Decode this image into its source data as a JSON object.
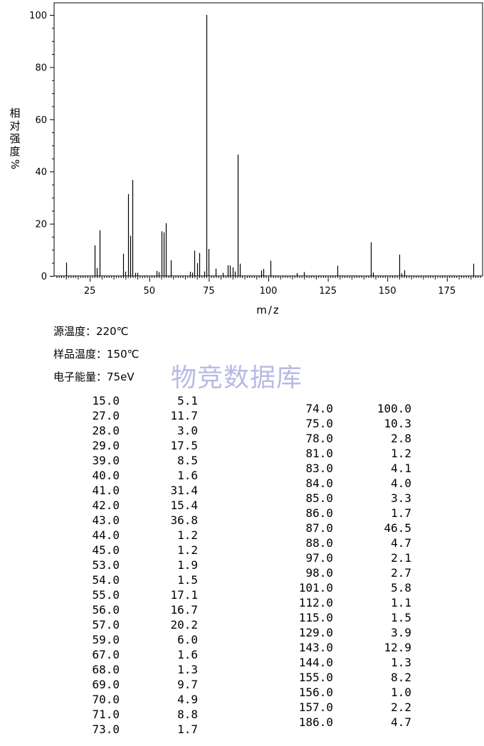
{
  "chart_data": {
    "type": "bar",
    "xlabel": "m/z",
    "ylabel": "相对强度%",
    "ylabel_chars": [
      "相",
      "对",
      "强",
      "度"
    ],
    "ylabel_unit": "%",
    "xlim": [
      10,
      190
    ],
    "ylim": [
      0,
      100
    ],
    "xticks": [
      25,
      50,
      75,
      100,
      125,
      150,
      175
    ],
    "yticks": [
      0,
      20,
      40,
      60,
      80,
      100
    ],
    "xtick_labels": [
      "25",
      "50",
      "75",
      "100",
      "125",
      "150",
      "175"
    ],
    "ytick_labels": [
      "0",
      "20",
      "40",
      "60",
      "80",
      "100"
    ],
    "grid": false,
    "peaks": [
      {
        "mz": 15,
        "intensity": 5.1
      },
      {
        "mz": 27,
        "intensity": 11.7
      },
      {
        "mz": 28,
        "intensity": 3.0
      },
      {
        "mz": 29,
        "intensity": 17.5
      },
      {
        "mz": 39,
        "intensity": 8.5
      },
      {
        "mz": 40,
        "intensity": 1.6
      },
      {
        "mz": 41,
        "intensity": 31.4
      },
      {
        "mz": 42,
        "intensity": 15.4
      },
      {
        "mz": 43,
        "intensity": 36.8
      },
      {
        "mz": 44,
        "intensity": 1.2
      },
      {
        "mz": 45,
        "intensity": 1.2
      },
      {
        "mz": 53,
        "intensity": 1.9
      },
      {
        "mz": 54,
        "intensity": 1.5
      },
      {
        "mz": 55,
        "intensity": 17.1
      },
      {
        "mz": 56,
        "intensity": 16.7
      },
      {
        "mz": 57,
        "intensity": 20.2
      },
      {
        "mz": 59,
        "intensity": 6.0
      },
      {
        "mz": 67,
        "intensity": 1.6
      },
      {
        "mz": 68,
        "intensity": 1.3
      },
      {
        "mz": 69,
        "intensity": 9.7
      },
      {
        "mz": 70,
        "intensity": 4.9
      },
      {
        "mz": 71,
        "intensity": 8.8
      },
      {
        "mz": 73,
        "intensity": 1.7
      },
      {
        "mz": 74,
        "intensity": 100.0
      },
      {
        "mz": 75,
        "intensity": 10.3
      },
      {
        "mz": 78,
        "intensity": 2.8
      },
      {
        "mz": 81,
        "intensity": 1.2
      },
      {
        "mz": 83,
        "intensity": 4.1
      },
      {
        "mz": 84,
        "intensity": 4.0
      },
      {
        "mz": 85,
        "intensity": 3.3
      },
      {
        "mz": 86,
        "intensity": 1.7
      },
      {
        "mz": 87,
        "intensity": 46.5
      },
      {
        "mz": 88,
        "intensity": 4.7
      },
      {
        "mz": 97,
        "intensity": 2.1
      },
      {
        "mz": 98,
        "intensity": 2.7
      },
      {
        "mz": 101,
        "intensity": 5.8
      },
      {
        "mz": 112,
        "intensity": 1.1
      },
      {
        "mz": 115,
        "intensity": 1.5
      },
      {
        "mz": 129,
        "intensity": 3.9
      },
      {
        "mz": 143,
        "intensity": 12.9
      },
      {
        "mz": 144,
        "intensity": 1.3
      },
      {
        "mz": 155,
        "intensity": 8.2
      },
      {
        "mz": 156,
        "intensity": 1.0
      },
      {
        "mz": 157,
        "intensity": 2.2
      },
      {
        "mz": 186,
        "intensity": 4.7
      }
    ]
  },
  "conditions": {
    "source_temp": "源温度：220℃",
    "sample_temp": "样品温度：150℃",
    "electron_energy": "电子能量：75eV"
  },
  "watermark": "物竞数据库",
  "table_left": [
    [
      "15.0",
      "5.1"
    ],
    [
      "27.0",
      "11.7"
    ],
    [
      "28.0",
      "3.0"
    ],
    [
      "29.0",
      "17.5"
    ],
    [
      "39.0",
      "8.5"
    ],
    [
      "40.0",
      "1.6"
    ],
    [
      "41.0",
      "31.4"
    ],
    [
      "42.0",
      "15.4"
    ],
    [
      "43.0",
      "36.8"
    ],
    [
      "44.0",
      "1.2"
    ],
    [
      "45.0",
      "1.2"
    ],
    [
      "53.0",
      "1.9"
    ],
    [
      "54.0",
      "1.5"
    ],
    [
      "55.0",
      "17.1"
    ],
    [
      "56.0",
      "16.7"
    ],
    [
      "57.0",
      "20.2"
    ],
    [
      "59.0",
      "6.0"
    ],
    [
      "67.0",
      "1.6"
    ],
    [
      "68.0",
      "1.3"
    ],
    [
      "69.0",
      "9.7"
    ],
    [
      "70.0",
      "4.9"
    ],
    [
      "71.0",
      "8.8"
    ],
    [
      "73.0",
      "1.7"
    ]
  ],
  "table_right": [
    [
      "74.0",
      "100.0"
    ],
    [
      "75.0",
      "10.3"
    ],
    [
      "78.0",
      "2.8"
    ],
    [
      "81.0",
      "1.2"
    ],
    [
      "83.0",
      "4.1"
    ],
    [
      "84.0",
      "4.0"
    ],
    [
      "85.0",
      "3.3"
    ],
    [
      "86.0",
      "1.7"
    ],
    [
      "87.0",
      "46.5"
    ],
    [
      "88.0",
      "4.7"
    ],
    [
      "97.0",
      "2.1"
    ],
    [
      "98.0",
      "2.7"
    ],
    [
      "101.0",
      "5.8"
    ],
    [
      "112.0",
      "1.1"
    ],
    [
      "115.0",
      "1.5"
    ],
    [
      "129.0",
      "3.9"
    ],
    [
      "143.0",
      "12.9"
    ],
    [
      "144.0",
      "1.3"
    ],
    [
      "155.0",
      "8.2"
    ],
    [
      "156.0",
      "1.0"
    ],
    [
      "157.0",
      "2.2"
    ],
    [
      "186.0",
      "4.7"
    ]
  ]
}
